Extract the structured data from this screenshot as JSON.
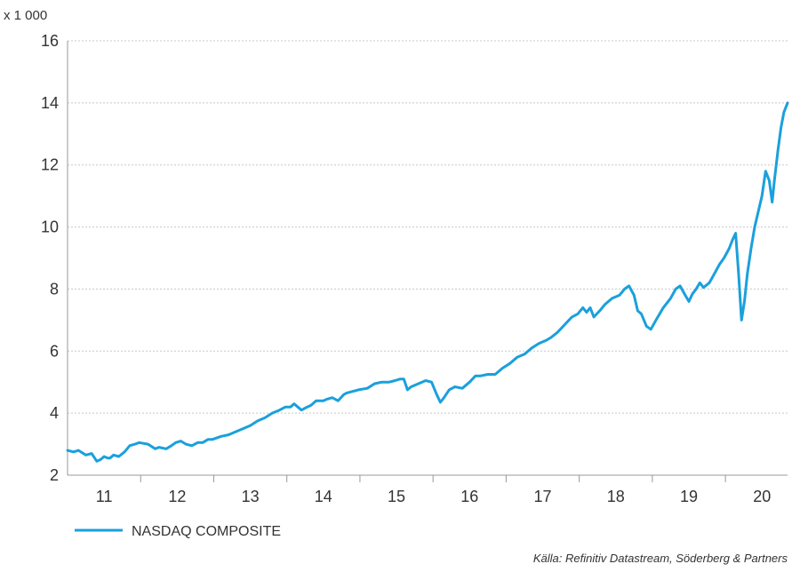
{
  "chart_data": {
    "type": "line",
    "y_unit_label": "x 1 000",
    "ylim": [
      2,
      16
    ],
    "y_ticks": [
      2,
      4,
      6,
      8,
      10,
      12,
      14,
      16
    ],
    "xlim": [
      2011.0,
      2020.85
    ],
    "x_tick_labels": [
      {
        "label": "11",
        "at": 2011.5
      },
      {
        "label": "12",
        "at": 2012.5
      },
      {
        "label": "13",
        "at": 2013.5
      },
      {
        "label": "14",
        "at": 2014.5
      },
      {
        "label": "15",
        "at": 2015.5
      },
      {
        "label": "16",
        "at": 2016.5
      },
      {
        "label": "17",
        "at": 2017.5
      },
      {
        "label": "18",
        "at": 2018.5
      },
      {
        "label": "19",
        "at": 2019.5
      },
      {
        "label": "20",
        "at": 2020.5
      }
    ],
    "x_dividers": [
      2012,
      2013,
      2014,
      2015,
      2016,
      2017,
      2018,
      2019,
      2020
    ],
    "grid": true,
    "series": [
      {
        "name": "NASDAQ COMPOSITE",
        "color": "#1aa0dc",
        "x": [
          2011.0,
          2011.08,
          2011.15,
          2011.25,
          2011.33,
          2011.4,
          2011.45,
          2011.5,
          2011.55,
          2011.58,
          2011.63,
          2011.7,
          2011.78,
          2011.85,
          2011.92,
          2011.98,
          2012.1,
          2012.2,
          2012.25,
          2012.35,
          2012.42,
          2012.48,
          2012.55,
          2012.62,
          2012.7,
          2012.78,
          2012.85,
          2012.92,
          2012.98,
          2013.1,
          2013.2,
          2013.3,
          2013.4,
          2013.5,
          2013.6,
          2013.7,
          2013.8,
          2013.9,
          2013.98,
          2014.05,
          2014.1,
          2014.2,
          2014.28,
          2014.33,
          2014.4,
          2014.5,
          2014.55,
          2014.62,
          2014.7,
          2014.78,
          2014.82,
          2014.9,
          2014.98,
          2015.1,
          2015.2,
          2015.3,
          2015.4,
          2015.48,
          2015.55,
          2015.6,
          2015.65,
          2015.7,
          2015.8,
          2015.9,
          2015.98,
          2016.05,
          2016.1,
          2016.15,
          2016.22,
          2016.3,
          2016.4,
          2016.45,
          2016.5,
          2016.58,
          2016.65,
          2016.75,
          2016.85,
          2016.95,
          2017.05,
          2017.15,
          2017.25,
          2017.35,
          2017.45,
          2017.55,
          2017.62,
          2017.7,
          2017.8,
          2017.9,
          2017.98,
          2018.05,
          2018.1,
          2018.15,
          2018.2,
          2018.28,
          2018.35,
          2018.45,
          2018.55,
          2018.62,
          2018.68,
          2018.75,
          2018.8,
          2018.85,
          2018.92,
          2018.98,
          2019.05,
          2019.15,
          2019.25,
          2019.32,
          2019.38,
          2019.45,
          2019.5,
          2019.55,
          2019.6,
          2019.65,
          2019.7,
          2019.78,
          2019.85,
          2019.92,
          2019.98,
          2020.05,
          2020.1,
          2020.14,
          2020.18,
          2020.22,
          2020.26,
          2020.3,
          2020.35,
          2020.4,
          2020.45,
          2020.5,
          2020.55,
          2020.6,
          2020.64,
          2020.67,
          2020.72,
          2020.76,
          2020.8,
          2020.85
        ],
        "values": [
          2.8,
          2.75,
          2.8,
          2.65,
          2.7,
          2.45,
          2.5,
          2.6,
          2.55,
          2.55,
          2.65,
          2.6,
          2.75,
          2.95,
          3.0,
          3.05,
          3.0,
          2.85,
          2.9,
          2.85,
          2.95,
          3.05,
          3.1,
          3.0,
          2.95,
          3.05,
          3.05,
          3.15,
          3.15,
          3.25,
          3.3,
          3.4,
          3.5,
          3.6,
          3.75,
          3.85,
          4.0,
          4.1,
          4.2,
          4.2,
          4.3,
          4.1,
          4.2,
          4.25,
          4.4,
          4.4,
          4.45,
          4.5,
          4.4,
          4.6,
          4.65,
          4.7,
          4.75,
          4.8,
          4.95,
          5.0,
          5.0,
          5.05,
          5.1,
          5.1,
          4.75,
          4.85,
          4.95,
          5.05,
          5.0,
          4.6,
          4.35,
          4.5,
          4.75,
          4.85,
          4.8,
          4.9,
          5.0,
          5.2,
          5.2,
          5.25,
          5.25,
          5.45,
          5.6,
          5.8,
          5.9,
          6.1,
          6.25,
          6.35,
          6.45,
          6.6,
          6.85,
          7.1,
          7.2,
          7.4,
          7.25,
          7.4,
          7.1,
          7.3,
          7.5,
          7.7,
          7.8,
          8.0,
          8.1,
          7.8,
          7.3,
          7.2,
          6.8,
          6.7,
          7.0,
          7.4,
          7.7,
          8.0,
          8.1,
          7.8,
          7.6,
          7.85,
          8.0,
          8.2,
          8.05,
          8.2,
          8.5,
          8.8,
          9.0,
          9.3,
          9.6,
          9.8,
          8.5,
          7.0,
          7.6,
          8.5,
          9.3,
          10.0,
          10.5,
          11.0,
          11.8,
          11.5,
          10.8,
          11.5,
          12.5,
          13.2,
          13.7,
          14.0
        ]
      }
    ],
    "legend": {
      "position": "bottom-left",
      "label": "NASDAQ COMPOSITE"
    },
    "source": "Källa: Refinitiv Datastream, Söderberg & Partners"
  }
}
